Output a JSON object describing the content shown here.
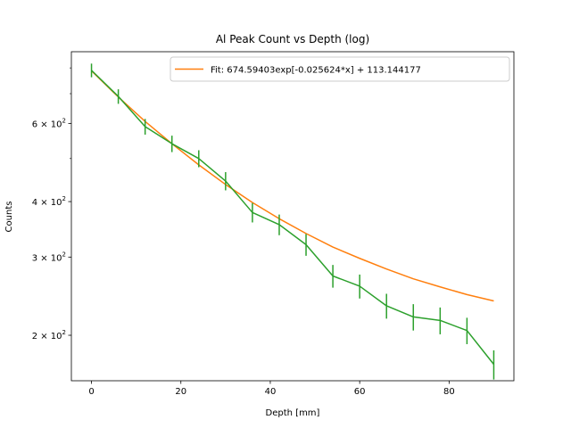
{
  "chart_data": {
    "type": "line",
    "title": "Al Peak Count vs Depth (log)",
    "xlabel": "Depth [mm]",
    "ylabel": "Counts",
    "xscale": "linear",
    "yscale": "log",
    "xlim": [
      -4.5,
      94.5
    ],
    "ylim": [
      158,
      870
    ],
    "x_ticks": [
      0,
      20,
      40,
      60,
      80
    ],
    "x_tick_labels": [
      "0",
      "20",
      "40",
      "60",
      "80"
    ],
    "y_major_ticks": [
      200,
      300,
      400,
      600
    ],
    "y_tick_labels": [
      {
        "mantissa": "2",
        "exponent": "2"
      },
      {
        "mantissa": "3",
        "exponent": "2"
      },
      {
        "mantissa": "4",
        "exponent": "2"
      },
      {
        "mantissa": "6",
        "exponent": "2"
      }
    ],
    "y_minor_ticks": [
      500,
      700,
      800
    ],
    "grid": false,
    "legend_position": "top-right",
    "colors": {
      "fit": "#ff7f0e",
      "data": "#2ca02c"
    },
    "series": [
      {
        "name": "Fit: 674.59403exp[-0.025624*x] + 113.144177",
        "kind": "fit",
        "x": [
          0,
          6,
          12,
          18,
          24,
          30,
          36,
          42,
          48,
          54,
          60,
          66,
          72,
          78,
          84,
          90
        ],
        "values": [
          788,
          688,
          606,
          540,
          484,
          437,
          398,
          366,
          339,
          316,
          298,
          282,
          268,
          257,
          247,
          239
        ],
        "fit_params": {
          "a": 674.59403,
          "b": -0.025624,
          "c": 113.144177
        }
      },
      {
        "kind": "data",
        "x": [
          0,
          6,
          12,
          18,
          24,
          30,
          36,
          42,
          48,
          54,
          60,
          66,
          72,
          78,
          84,
          90
        ],
        "values": [
          790,
          690,
          590,
          540,
          500,
          445,
          378,
          355,
          320,
          272,
          258,
          233,
          220,
          216,
          205,
          172
        ],
        "errors": [
          28,
          26,
          24,
          23,
          22,
          21,
          19,
          19,
          18,
          16,
          16,
          15,
          15,
          15,
          14,
          13
        ]
      }
    ]
  }
}
